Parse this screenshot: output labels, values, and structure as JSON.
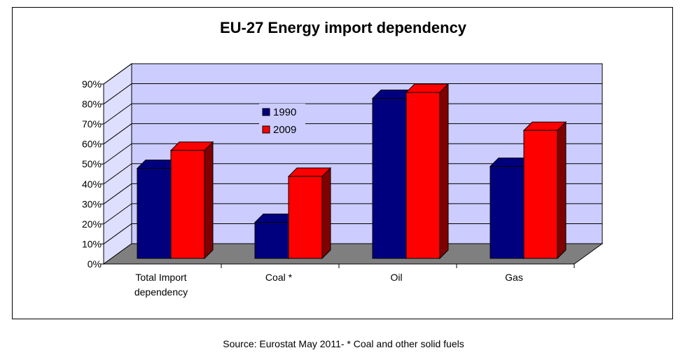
{
  "chart_data": {
    "type": "bar",
    "title": "EU-27 Energy import dependency",
    "categories": [
      "Total Import dependency",
      "Coal *",
      "Oil",
      "Gas"
    ],
    "category_lines": [
      [
        "Total Import",
        "dependency"
      ],
      [
        "Coal *"
      ],
      [
        "Oil"
      ],
      [
        "Gas"
      ]
    ],
    "series": [
      {
        "name": "1990",
        "values": [
          45,
          18,
          80,
          46
        ],
        "color": "#00007f"
      },
      {
        "name": "2009",
        "values": [
          54,
          41,
          83,
          64
        ],
        "color": "#ff0000"
      }
    ],
    "ylim": [
      0,
      90
    ],
    "yticks": [
      "0%",
      "10%",
      "20%",
      "30%",
      "40%",
      "50%",
      "60%",
      "70%",
      "80%",
      "90%"
    ],
    "grid": true,
    "legend": "upper-left inside plot",
    "colors": {
      "wall": "#ccccff",
      "floor": "#7f7f7f"
    }
  },
  "footer": {
    "source": "Source: Eurostat May 2011- * Coal and other solid fuels"
  }
}
